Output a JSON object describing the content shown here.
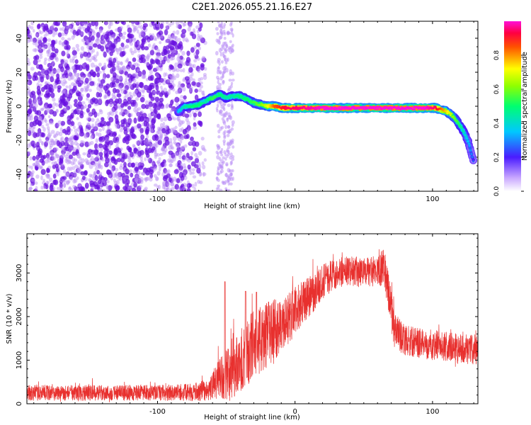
{
  "title": "C2E1.2026.055.21.16.E27",
  "colors": {
    "snr_line": "#e8302e",
    "scatter_purple": "#6a12e0",
    "frame": "#000000"
  },
  "chart_data": [
    {
      "type": "scatter",
      "name": "spectrogram",
      "xlabel": "Height of straight line (km)",
      "ylabel": "Frequency (Hz)",
      "xlim": [
        -195,
        133
      ],
      "ylim": [
        -50,
        50
      ],
      "xticks": [
        -100,
        0,
        100
      ],
      "xtick_labels": [
        "-100",
        "",
        "100"
      ],
      "yticks": [
        -40,
        -20,
        0,
        20,
        40
      ],
      "ytick_labels": [
        "-40",
        "-20",
        "0",
        "20",
        "40"
      ],
      "colorbar": {
        "label": "Normalized spectral amplitude",
        "range": [
          0,
          1
        ],
        "ticks": [
          0,
          0.2,
          0.4,
          0.6,
          0.8
        ],
        "tick_labels": [
          "0.0",
          "0.2",
          "0.4",
          "0.6",
          "0.8"
        ]
      },
      "noise_region": {
        "x_range": [
          -195,
          -65
        ],
        "secondary_band": [
          -57,
          -45
        ],
        "amplitude_range": [
          0.05,
          0.3
        ]
      },
      "signal_trace": {
        "x": [
          -85,
          -80,
          -75,
          -70,
          -65,
          -60,
          -55,
          -50,
          -45,
          -40,
          -35,
          -30,
          -25,
          -20,
          -15,
          -10,
          -5,
          0,
          20,
          40,
          60,
          80,
          95,
          102,
          106,
          110,
          114,
          118,
          122,
          126,
          130
        ],
        "frequency": [
          -3,
          0,
          0,
          1,
          3,
          5,
          7,
          5,
          6,
          6,
          4,
          2,
          1,
          0,
          0,
          -1,
          -1,
          -1,
          -1,
          -1,
          -1,
          -1,
          -1,
          -1,
          -2,
          -3,
          -5,
          -9,
          -14,
          -21,
          -33
        ],
        "amplitude": [
          0.35,
          0.45,
          0.5,
          0.5,
          0.45,
          0.55,
          0.5,
          0.45,
          0.45,
          0.5,
          0.5,
          0.55,
          0.6,
          0.7,
          0.85,
          0.9,
          0.95,
          0.95,
          1.0,
          1.0,
          1.0,
          1.0,
          1.0,
          0.95,
          0.85,
          0.75,
          0.65,
          0.55,
          0.45,
          0.35,
          0.25
        ]
      }
    },
    {
      "type": "line",
      "name": "snr",
      "xlabel": "Height of straight line (km)",
      "ylabel": "SNR (10 * v/v)",
      "xlim": [
        -195,
        133
      ],
      "ylim": [
        0,
        3900
      ],
      "xticks": [
        -100,
        0,
        100
      ],
      "xtick_labels": [
        "-100",
        "0",
        "100"
      ],
      "yticks": [
        0,
        1000,
        2000,
        3000
      ],
      "ytick_labels": [
        "0",
        "1000",
        "2000",
        "3000"
      ],
      "series": [
        {
          "name": "SNR",
          "envelope_x": [
            -195,
            -150,
            -100,
            -75,
            -62,
            -55,
            -48,
            -42,
            -35,
            -25,
            -15,
            -5,
            5,
            12,
            20,
            30,
            40,
            50,
            60,
            65,
            68,
            72,
            80,
            90,
            100,
            110,
            120,
            133
          ],
          "envelope_mean": [
            250,
            250,
            250,
            260,
            320,
            600,
            700,
            900,
            1200,
            1500,
            1700,
            1950,
            2300,
            2500,
            2800,
            3000,
            3050,
            3000,
            3050,
            3150,
            2600,
            1700,
            1450,
            1400,
            1350,
            1300,
            1250,
            1250
          ],
          "envelope_spread": [
            180,
            180,
            180,
            200,
            260,
            500,
            600,
            700,
            800,
            800,
            700,
            600,
            500,
            450,
            400,
            350,
            350,
            350,
            350,
            450,
            500,
            400,
            350,
            350,
            350,
            350,
            350,
            350
          ],
          "spikes": [
            {
              "x": -51,
              "value": 2800
            },
            {
              "x": -36,
              "value": 2580
            },
            {
              "x": -28,
              "value": 2560
            }
          ]
        }
      ]
    }
  ]
}
